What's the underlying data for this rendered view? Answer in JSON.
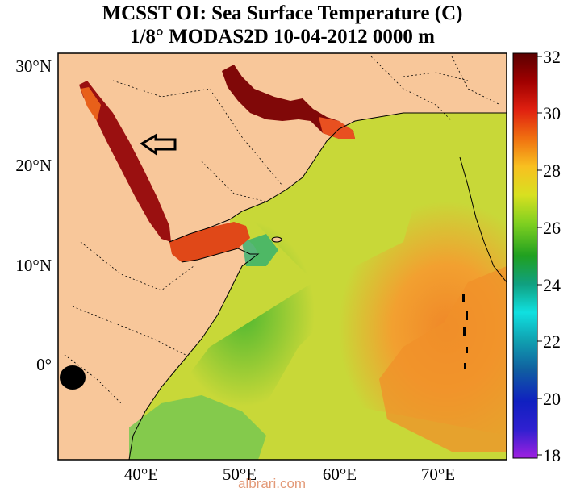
{
  "title": {
    "line1": "MCSST OI:  Sea Surface Temperature (C)",
    "line2": "1/8° MODAS2D 10-04-2012 0000 m"
  },
  "map": {
    "lat_labels": [
      "30°N",
      "20°N",
      "10°N",
      "0°"
    ],
    "lon_labels": [
      "40°E",
      "50°E",
      "60°E",
      "70°E"
    ],
    "land_color": "#f8c79a",
    "pointer": "arrow-icon"
  },
  "colorbar": {
    "labels": [
      "32",
      "30",
      "28",
      "26",
      "24",
      "22",
      "20",
      "18"
    ],
    "unit": "C",
    "min": 18,
    "max": 32
  },
  "watermark": "albrari.com"
}
